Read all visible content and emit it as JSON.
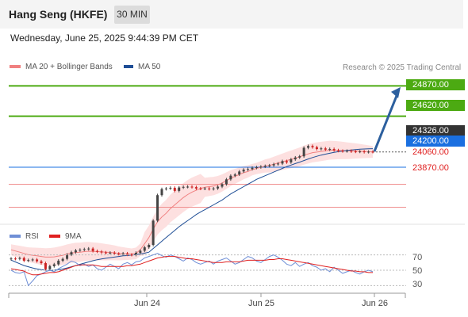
{
  "header": {
    "title": "Hang Seng (HKFE)",
    "timeframe": "30 MIN"
  },
  "datetime": "Wednesday, June 25, 2025 9:44:39 PM CET",
  "legend": {
    "ma20": "MA 20 + Bollinger Bands",
    "ma50": "MA 50",
    "ma20_color": "#f08080",
    "ma50_color": "#1f4e96"
  },
  "source": "Research © 2025 Trading Central",
  "rsi_legend": {
    "rsi": "RSI",
    "ma9": "9MA",
    "rsi_color": "#6f8fd6",
    "ma9_color": "#e02020"
  },
  "colors": {
    "target": "#4caa12",
    "current": "#333333",
    "pivot": "#1a6fe0",
    "support": "#e02020",
    "arrow": "#2c5f9e",
    "candle_up": "#444444",
    "candle_down": "#cc2222",
    "band_fill": "#fde0e0"
  },
  "chart_data": [
    {
      "type": "candlestick",
      "title": "Hang Seng (HKFE)",
      "timeframe": "30 MIN",
      "x_ticks": [
        "Jun 24",
        "Jun 25",
        "Jun 26"
      ],
      "ylim": [
        23730,
        24990
      ],
      "levels": [
        {
          "value": 24870.0,
          "label": "24870.00",
          "kind": "target"
        },
        {
          "value": 24620.0,
          "label": "24620.00",
          "kind": "target"
        },
        {
          "value": 24326.0,
          "label": "24326.00",
          "kind": "current"
        },
        {
          "value": 24200.0,
          "label": "24200.00",
          "kind": "pivot"
        },
        {
          "value": 24060.0,
          "label": "24060.00",
          "kind": "support"
        },
        {
          "value": 23870.0,
          "label": "23870.00",
          "kind": "support"
        }
      ],
      "close": [
        23448,
        23445,
        23452,
        23430,
        23435,
        23440,
        23425,
        23410,
        23360,
        23385,
        23400,
        23430,
        23445,
        23480,
        23500,
        23515,
        23520,
        23525,
        23530,
        23510,
        23505,
        23498,
        23494,
        23496,
        23488,
        23485,
        23490,
        23480,
        23478,
        23495,
        23512,
        23540,
        23560,
        23760,
        23970,
        24020,
        24025,
        24030,
        24005,
        24033,
        24038,
        24040,
        24036,
        24025,
        24023,
        24025,
        24020,
        24025,
        24040,
        24060,
        24100,
        24130,
        24140,
        24165,
        24180,
        24185,
        24195,
        24200,
        24205,
        24210,
        24215,
        24225,
        24230,
        24250,
        24240,
        24265,
        24280,
        24290,
        24360,
        24375,
        24365,
        24350,
        24355,
        24345,
        24350,
        24340,
        24335,
        24332,
        24335,
        24330,
        24328,
        24330,
        24325,
        24328,
        24326
      ],
      "ma20": [
        23520,
        23510,
        23500,
        23490,
        23480,
        23475,
        23470,
        23465,
        23460,
        23460,
        23462,
        23468,
        23475,
        23485,
        23492,
        23498,
        23500,
        23505,
        23508,
        23506,
        23505,
        23503,
        23500,
        23498,
        23495,
        23490,
        23488,
        23486,
        23485,
        23490,
        23520,
        23570,
        23620,
        23690,
        23750,
        23790,
        23820,
        23860,
        23890,
        23920,
        23950,
        23975,
        23995,
        24010,
        24025,
        24035,
        24040,
        24045,
        24055,
        24070,
        24090,
        24110,
        24125,
        24140,
        24155,
        24165,
        24180,
        24190,
        24200,
        24210,
        24215,
        24225,
        24235,
        24245,
        24255,
        24265,
        24275,
        24285,
        24300,
        24310,
        24320,
        24325,
        24330,
        24335,
        24340,
        24340,
        24340,
        24338,
        24336,
        24335,
        24334,
        24332,
        24330,
        24328,
        24326
      ],
      "ma50": [
        23435,
        23420,
        23405,
        23390,
        23380,
        23370,
        23362,
        23356,
        23352,
        23350,
        23352,
        23356,
        23362,
        23370,
        23380,
        23390,
        23400,
        23410,
        23420,
        23430,
        23438,
        23445,
        23450,
        23455,
        23460,
        23465,
        23470,
        23472,
        23476,
        23480,
        23485,
        23492,
        23500,
        23530,
        23560,
        23590,
        23620,
        23650,
        23680,
        23710,
        23735,
        23760,
        23785,
        23810,
        23832,
        23850,
        23870,
        23890,
        23910,
        23930,
        23955,
        23980,
        24000,
        24020,
        24040,
        24060,
        24080,
        24100,
        24115,
        24130,
        24145,
        24160,
        24175,
        24190,
        24205,
        24218,
        24230,
        24242,
        24255,
        24268,
        24280,
        24290,
        24300,
        24308,
        24315,
        24322,
        24328,
        24333,
        24338,
        24342,
        24345,
        24348,
        24350,
        24352,
        24353
      ],
      "rsi_series": {
        "ylim": [
          20,
          80
        ],
        "levels": [
          70,
          50,
          30
        ],
        "rsi": [
          50,
          47,
          46,
          48,
          30,
          36,
          43,
          45,
          48,
          50,
          48,
          52,
          55,
          58,
          62,
          60,
          56,
          58,
          55,
          57,
          52,
          50,
          54,
          58,
          55,
          52,
          58,
          60,
          57,
          61,
          62,
          66,
          68,
          70,
          72,
          69,
          67,
          70,
          68,
          65,
          62,
          66,
          64,
          60,
          58,
          60,
          62,
          58,
          62,
          64,
          66,
          62,
          58,
          60,
          64,
          68,
          66,
          62,
          60,
          64,
          68,
          70,
          67,
          63,
          58,
          56,
          60,
          55,
          58,
          60,
          56,
          54,
          50,
          52,
          48,
          54,
          50,
          46,
          48,
          50,
          47,
          45,
          48,
          50,
          48
        ],
        "ma9": [
          52,
          51,
          50,
          49,
          46,
          44,
          44,
          45,
          46,
          47,
          47,
          48,
          50,
          52,
          54,
          56,
          57,
          57,
          57,
          57,
          56,
          55,
          55,
          55,
          55,
          55,
          55,
          56,
          56,
          57,
          58,
          60,
          62,
          64,
          66,
          67,
          68,
          68,
          68,
          67,
          66,
          65,
          65,
          64,
          63,
          62,
          61,
          60,
          60,
          60,
          61,
          61,
          61,
          61,
          62,
          63,
          63,
          63,
          63,
          63,
          64,
          64,
          65,
          65,
          64,
          63,
          62,
          61,
          60,
          59,
          58,
          57,
          56,
          55,
          54,
          53,
          52,
          51,
          50,
          49,
          49,
          48,
          48,
          47,
          47
        ]
      }
    }
  ]
}
